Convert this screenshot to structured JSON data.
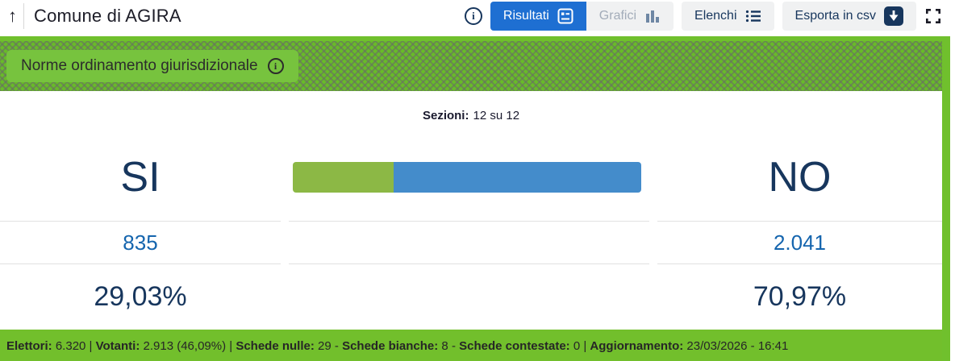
{
  "header": {
    "back_icon": "up-arrow",
    "title": "Comune di AGIRA",
    "tabs": [
      {
        "label": "Risultati",
        "icon": "results-board-icon",
        "active": true,
        "disabled": false
      },
      {
        "label": "Grafici",
        "icon": "bar-chart-icon",
        "active": false,
        "disabled": true
      },
      {
        "label": "Elenchi",
        "icon": "list-icon",
        "active": false,
        "disabled": false
      },
      {
        "label": "Esporta in csv",
        "icon": "download-icon",
        "active": false,
        "disabled": false
      }
    ]
  },
  "banner": {
    "title": "Norme ordinamento giurisdizionale"
  },
  "sections": {
    "label": "Sezioni:",
    "value": "12 su 12"
  },
  "results": {
    "yes": {
      "label": "SI",
      "votes": "835",
      "percent": "29,03%",
      "percent_value": 29.03,
      "color": "#8cb845"
    },
    "no": {
      "label": "NO",
      "votes": "2.041",
      "percent": "70,97%",
      "percent_value": 70.97,
      "color": "#448ccb"
    }
  },
  "footer": {
    "segments": [
      {
        "label": "Elettori:",
        "value": " 6.320",
        "sep": " | "
      },
      {
        "label": "Votanti:",
        "value": " 2.913 (46,09%)",
        "sep": " | "
      },
      {
        "label": "Schede nulle:",
        "value": " 29",
        "sep": " - "
      },
      {
        "label": "Schede bianche:",
        "value": " 8",
        "sep": " - "
      },
      {
        "label": "Schede contestate:",
        "value": " 0",
        "sep": " | "
      },
      {
        "label": "Aggiornamento:",
        "value": " 23/03/2026 - 16:41",
        "sep": ""
      }
    ]
  },
  "colors": {
    "accent_green": "#72bf2c",
    "bar_green": "#8cb845",
    "bar_blue": "#448ccb",
    "active_tab_blue": "#1e6fd2",
    "navy_text": "#17365d",
    "votes_blue": "#1565ae"
  }
}
